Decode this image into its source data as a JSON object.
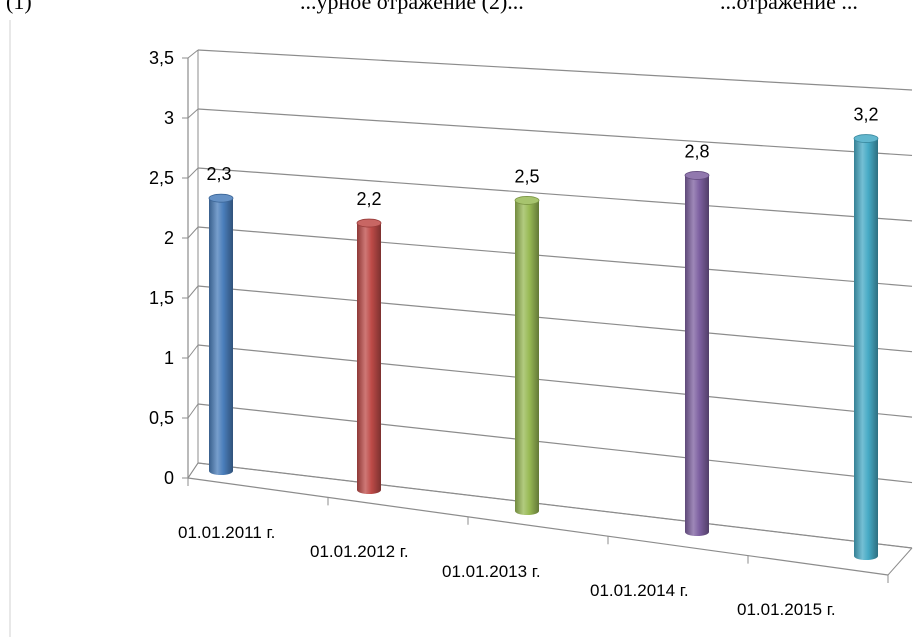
{
  "caption_fragments": {
    "left": "(1)",
    "middle": "...урное отражение (2)...",
    "right": "...отражение ..."
  },
  "chart_data": {
    "type": "bar",
    "style": "3d-cylinder",
    "title": "",
    "xlabel": "",
    "ylabel": "",
    "categories": [
      "01.01.2011 г.",
      "01.01.2012 г.",
      "01.01.2013 г.",
      "01.01.2014 г.",
      "01.01.2015 г."
    ],
    "values": [
      2.3,
      2.2,
      2.5,
      2.8,
      3.2
    ],
    "value_labels": [
      "2,3",
      "2,2",
      "2,5",
      "2,8",
      "3,2"
    ],
    "colors": [
      "#4a7ebb",
      "#be4b48",
      "#98b954",
      "#7d60a0",
      "#46aac5"
    ],
    "ylim": [
      0,
      3.5
    ],
    "y_ticks": [
      0,
      0.5,
      1,
      1.5,
      2,
      2.5,
      3,
      3.5
    ],
    "y_tick_labels": [
      "0",
      "0,5",
      "1",
      "1,5",
      "2",
      "2,5",
      "3",
      "3,5"
    ],
    "grid": true,
    "legend": "none"
  }
}
